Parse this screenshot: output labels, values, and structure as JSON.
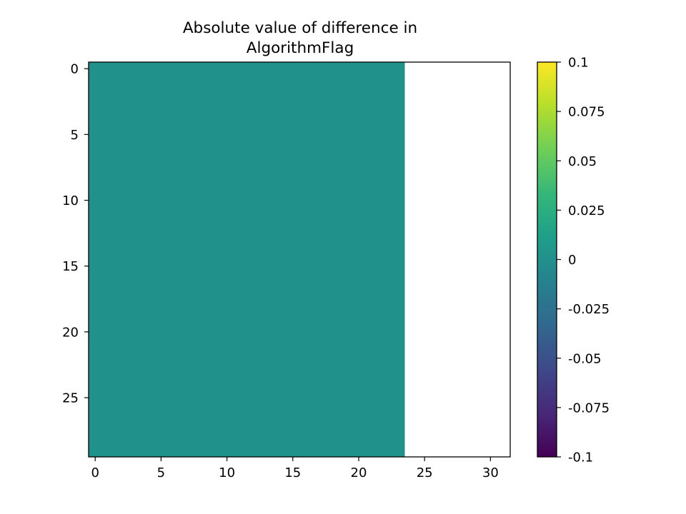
{
  "chart_data": {
    "type": "heatmap",
    "title_lines": [
      "Absolute value of difference in",
      "AlgorithmFlag"
    ],
    "xlabel": "",
    "ylabel": "",
    "grid_cols": 32,
    "grid_rows": 30,
    "x_range": [
      -0.5,
      31.5
    ],
    "y_range": [
      -0.5,
      29.5
    ],
    "y_inverted": true,
    "cells": [
      {
        "x_start": -0.5,
        "x_end": 23.5,
        "y_start": -0.5,
        "y_end": 29.5,
        "value": 0,
        "color": "#21918c"
      }
    ],
    "no_data_region": {
      "x_start": 23.5,
      "x_end": 31.5,
      "color": "#ffffff"
    },
    "x_ticks": [
      {
        "value": 0,
        "label": "0"
      },
      {
        "value": 5,
        "label": "5"
      },
      {
        "value": 10,
        "label": "10"
      },
      {
        "value": 15,
        "label": "15"
      },
      {
        "value": 20,
        "label": "20"
      },
      {
        "value": 25,
        "label": "25"
      },
      {
        "value": 30,
        "label": "30"
      }
    ],
    "y_ticks": [
      {
        "value": 0,
        "label": "0"
      },
      {
        "value": 5,
        "label": "5"
      },
      {
        "value": 10,
        "label": "10"
      },
      {
        "value": 15,
        "label": "15"
      },
      {
        "value": 20,
        "label": "20"
      },
      {
        "value": 25,
        "label": "25"
      }
    ],
    "colorbar": {
      "colormap": "viridis",
      "range": [
        -0.1,
        0.1
      ],
      "stops": [
        "#440154",
        "#482878",
        "#3e4989",
        "#31688e",
        "#26828e",
        "#1f9e89",
        "#35b779",
        "#6ece58",
        "#b5de2b",
        "#fde725"
      ],
      "ticks": [
        {
          "value": 0.1,
          "label": "0.1"
        },
        {
          "value": 0.075,
          "label": "0.075"
        },
        {
          "value": 0.05,
          "label": "0.05"
        },
        {
          "value": 0.025,
          "label": "0.025"
        },
        {
          "value": 0,
          "label": "0"
        },
        {
          "value": -0.025,
          "label": "-0.025"
        },
        {
          "value": -0.05,
          "label": "-0.05"
        },
        {
          "value": -0.075,
          "label": "-0.075"
        },
        {
          "value": -0.1,
          "label": "-0.1"
        }
      ]
    }
  }
}
